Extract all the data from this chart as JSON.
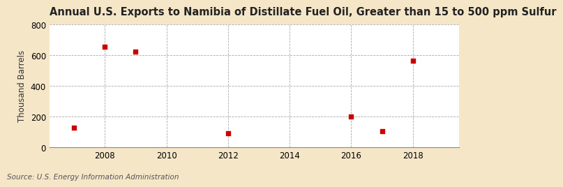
{
  "title": "Annual U.S. Exports to Namibia of Distillate Fuel Oil, Greater than 15 to 500 ppm Sulfur",
  "ylabel": "Thousand Barrels",
  "source": "Source: U.S. Energy Information Administration",
  "fig_background_color": "#f5e6c8",
  "plot_background_color": "#ffffff",
  "x_data": [
    2007,
    2008,
    2009,
    2012,
    2016,
    2017,
    2018
  ],
  "y_data": [
    130,
    655,
    625,
    90,
    200,
    105,
    565
  ],
  "marker_color": "#cc0000",
  "marker_size": 5,
  "xlim": [
    2006.2,
    2019.5
  ],
  "ylim": [
    0,
    800
  ],
  "yticks": [
    0,
    200,
    400,
    600,
    800
  ],
  "xticks": [
    2008,
    2010,
    2012,
    2014,
    2016,
    2018
  ],
  "title_fontsize": 10.5,
  "label_fontsize": 8.5,
  "tick_fontsize": 8.5,
  "source_fontsize": 7.5
}
